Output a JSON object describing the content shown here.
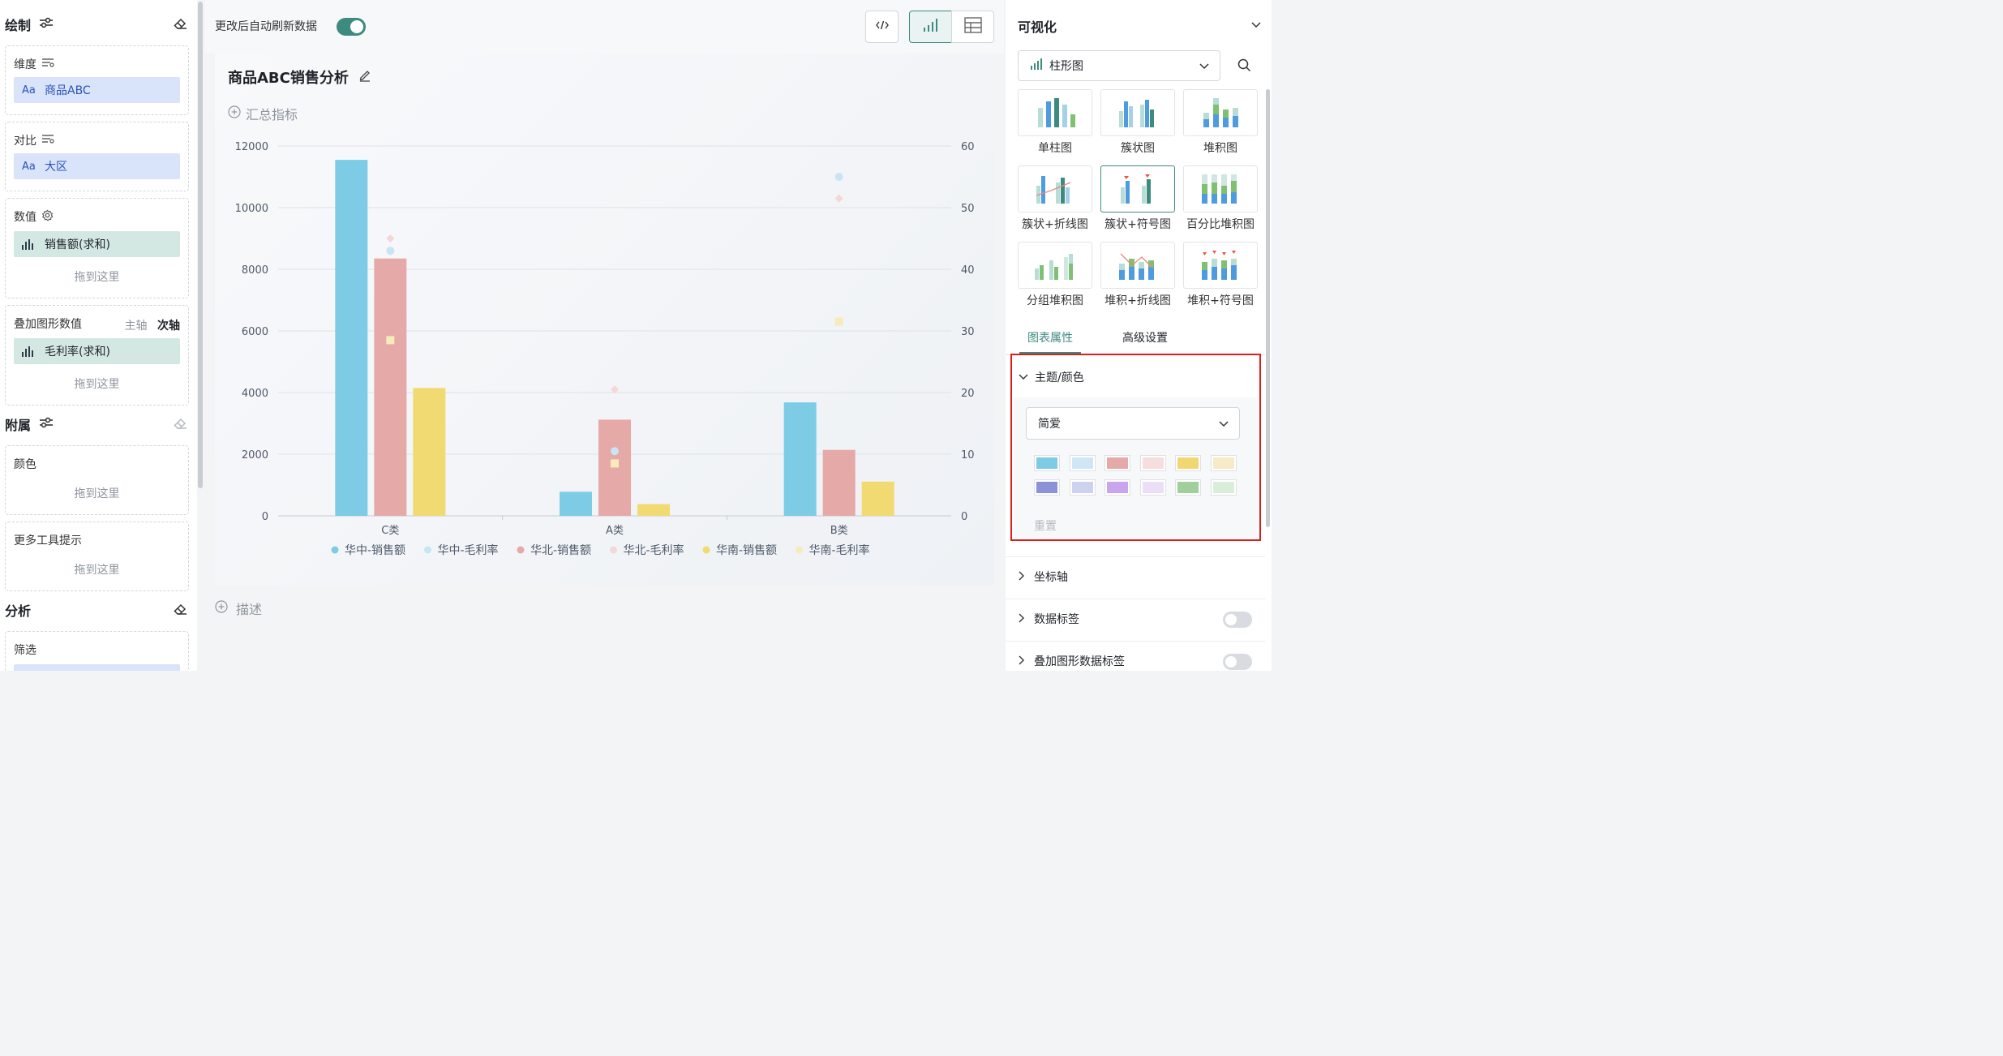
{
  "left": {
    "draw": {
      "title": "绘制"
    },
    "dimension": {
      "label": "维度",
      "field": "商品ABC",
      "type_badge": "Aa"
    },
    "compare": {
      "label": "对比",
      "field": "大区",
      "type_badge": "Aa"
    },
    "value": {
      "label": "数值",
      "field": "销售额(求和)",
      "drop": "拖到这里"
    },
    "overlay": {
      "label": "叠加图形数值",
      "primary_axis": "主轴",
      "secondary_axis": "次轴",
      "field": "毛利率(求和)",
      "drop": "拖到这里"
    },
    "attach": {
      "title": "附属"
    },
    "color": {
      "label": "颜色",
      "drop": "拖到这里"
    },
    "tooltip": {
      "label": "更多工具提示",
      "drop": "拖到这里"
    },
    "analysis": {
      "title": "分析"
    },
    "filter": {
      "label": "筛选"
    }
  },
  "center": {
    "auto_refresh_label": "更改后自动刷新数据",
    "auto_refresh_on": true,
    "chart_title": "商品ABC销售分析",
    "summary_label": "汇总指标",
    "describe_label": "描述"
  },
  "chart_data": {
    "type": "bar",
    "categories": [
      "C类",
      "A类",
      "B类"
    ],
    "series": [
      {
        "name": "华中-销售额",
        "kind": "bar",
        "axis": "left",
        "color": "#7ecbe6",
        "values": [
          11550,
          780,
          3680
        ]
      },
      {
        "name": "华中-毛利率",
        "kind": "point",
        "axis": "right",
        "color": "#c8e4f5",
        "values": [
          43,
          10.5,
          55
        ]
      },
      {
        "name": "华北-销售额",
        "kind": "bar",
        "axis": "left",
        "color": "#e5aaa8",
        "values": [
          8350,
          3120,
          2140
        ]
      },
      {
        "name": "华北-毛利率",
        "kind": "point",
        "axis": "right",
        "color": "#f6d6d6",
        "values": [
          45,
          20.5,
          51.5
        ]
      },
      {
        "name": "华南-销售额",
        "kind": "bar",
        "axis": "left",
        "color": "#f2da72",
        "values": [
          4150,
          380,
          1110
        ]
      },
      {
        "name": "华南-毛利率",
        "kind": "point",
        "axis": "right",
        "color": "#f7ebbb",
        "values": [
          28.5,
          8.5,
          31.5
        ]
      }
    ],
    "y_left": {
      "min": 0,
      "max": 12000,
      "ticks": [
        "0",
        "2000",
        "4000",
        "6000",
        "8000",
        "10000",
        "12000"
      ]
    },
    "y_right": {
      "min": 0,
      "max": 60,
      "ticks": [
        "0",
        "10",
        "20",
        "30",
        "40",
        "50",
        "60"
      ]
    },
    "legend": "bottom",
    "grid": true
  },
  "right": {
    "title": "可视化",
    "chart_type_selected": "柱形图",
    "chart_types": [
      "单柱图",
      "簇状图",
      "堆积图",
      "簇状+折线图",
      "簇状+符号图",
      "百分比堆积图",
      "分组堆积图",
      "堆积+折线图",
      "堆积+符号图"
    ],
    "tabs": [
      "图表属性",
      "高级设置"
    ],
    "theme": {
      "section": "主题/颜色",
      "selected": "简爱",
      "colors": [
        "#7ecbe6",
        "#cfe6f6",
        "#e5aaa8",
        "#f6dede",
        "#f2d770",
        "#f6ebc6",
        "#8b93d8",
        "#cdd3ee",
        "#c9a5ee",
        "#ebdff8",
        "#9fd09b",
        "#d9eed6"
      ],
      "reset": "重置"
    },
    "sections": [
      "坐标轴",
      "数据标签",
      "叠加图形数据标签"
    ]
  }
}
